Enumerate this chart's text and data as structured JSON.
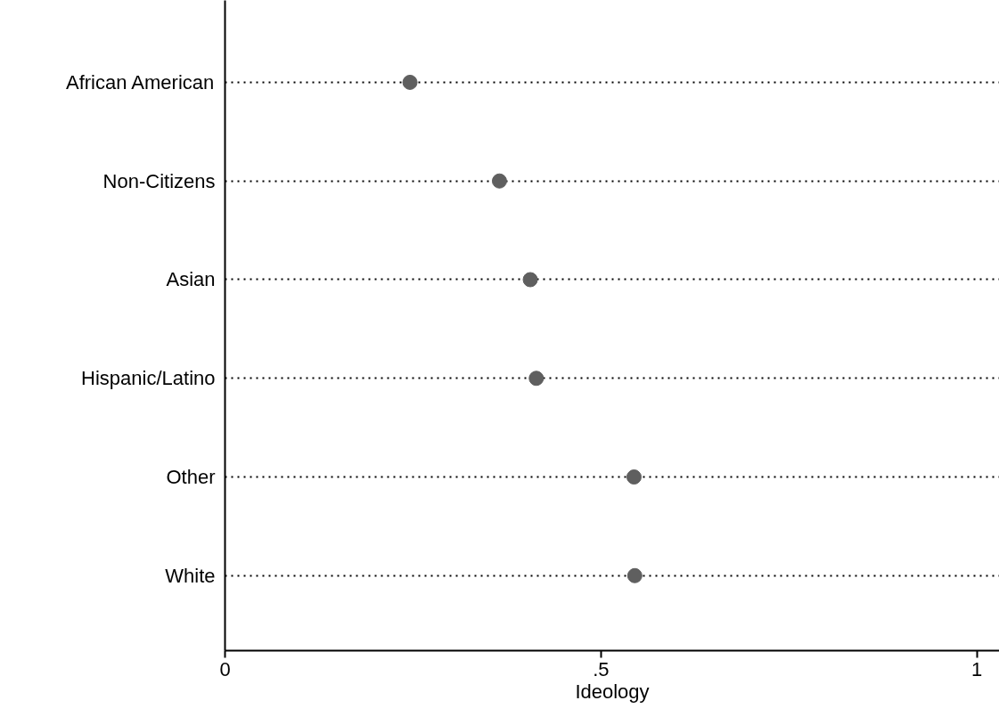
{
  "chart_data": {
    "type": "scatter",
    "xlabel": "Ideology",
    "categories": [
      "African American",
      "Non-Citizens",
      "Asian",
      "Hispanic/Latino",
      "Other",
      "White"
    ],
    "orientation": "horizontal",
    "values": [
      0.246,
      0.365,
      0.406,
      0.414,
      0.544,
      0.545
    ],
    "color": "#5f5f5f",
    "marker": "circle",
    "xlim": [
      0,
      1.03
    ],
    "xticks": [
      0,
      {
        "value": 0.5,
        "label": ".5"
      },
      1
    ],
    "grid": "y"
  }
}
